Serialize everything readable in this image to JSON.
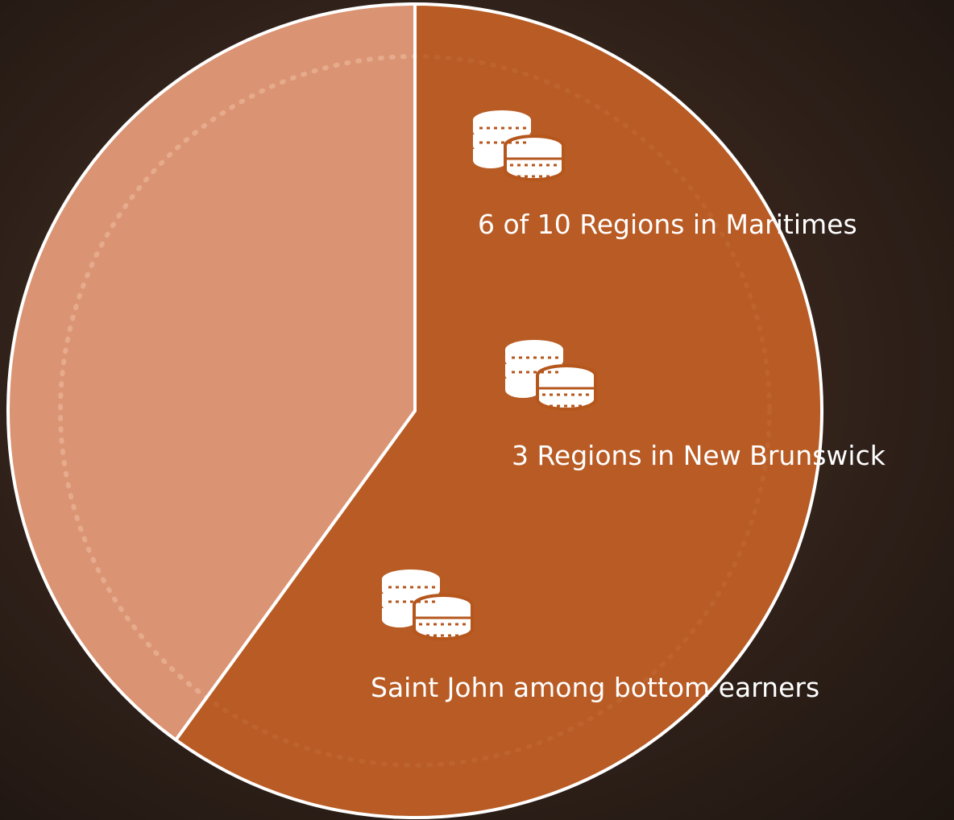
{
  "chart_data": {
    "type": "pie",
    "values": [
      60,
      40
    ],
    "colors": [
      "#b5561c",
      "#e6a98c"
    ],
    "annotations": [
      "6 of 10 Regions in Maritimes",
      "3 Regions in New Brunswick",
      "Saint John among bottom earners"
    ]
  }
}
